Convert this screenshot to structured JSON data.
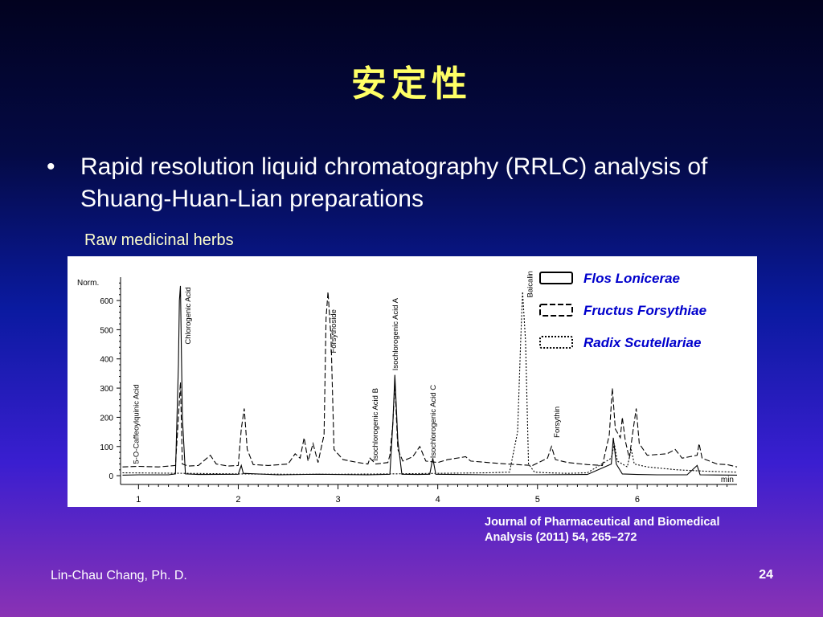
{
  "slide": {
    "title": "安定性",
    "bullet": "Rapid resolution liquid chromatography (RRLC) analysis of Shuang-Huan-Lian preparations",
    "subtitle": "Raw medicinal herbs",
    "citation_line1": "Journal of Pharmaceutical and Biomedical",
    "citation_line2": "Analysis (2011) 54, 265–272",
    "author": "Lin-Chau Chang, Ph. D.",
    "page_number": "24"
  },
  "chart_data": {
    "type": "line",
    "ylabel": "Norm.",
    "xlabel": "min",
    "xlim": [
      0.82,
      7.0
    ],
    "ylim": [
      -30,
      680
    ],
    "x_ticks": [
      1,
      2,
      3,
      4,
      5,
      6
    ],
    "y_ticks": [
      0,
      100,
      200,
      300,
      400,
      500,
      600
    ],
    "legend_position": "top-right",
    "series": [
      {
        "name": "Flos Lonicerae",
        "style": "solid",
        "points": [
          [
            0.84,
            2
          ],
          [
            1.0,
            3
          ],
          [
            1.3,
            3
          ],
          [
            1.37,
            6
          ],
          [
            1.4,
            380
          ],
          [
            1.41,
            600
          ],
          [
            1.42,
            650
          ],
          [
            1.44,
            200
          ],
          [
            1.47,
            6
          ],
          [
            1.6,
            4
          ],
          [
            2.0,
            5
          ],
          [
            2.03,
            35
          ],
          [
            2.05,
            8
          ],
          [
            2.4,
            3
          ],
          [
            2.8,
            5
          ],
          [
            3.3,
            3
          ],
          [
            3.52,
            5
          ],
          [
            3.55,
            180
          ],
          [
            3.57,
            345
          ],
          [
            3.6,
            120
          ],
          [
            3.64,
            5
          ],
          [
            3.8,
            4
          ],
          [
            3.92,
            5
          ],
          [
            3.95,
            60
          ],
          [
            3.98,
            5
          ],
          [
            4.5,
            3
          ],
          [
            5.0,
            3
          ],
          [
            5.5,
            4
          ],
          [
            5.74,
            40
          ],
          [
            5.76,
            130
          ],
          [
            5.79,
            40
          ],
          [
            5.85,
            6
          ],
          [
            6.0,
            4
          ],
          [
            6.2,
            3
          ],
          [
            6.5,
            3
          ],
          [
            6.6,
            35
          ],
          [
            6.63,
            3
          ],
          [
            7.0,
            2
          ]
        ]
      },
      {
        "name": "Fructus Forsythiae",
        "style": "dashed",
        "points": [
          [
            0.84,
            30
          ],
          [
            1.0,
            32
          ],
          [
            1.2,
            30
          ],
          [
            1.37,
            35
          ],
          [
            1.4,
            200
          ],
          [
            1.42,
            320
          ],
          [
            1.44,
            40
          ],
          [
            1.5,
            33
          ],
          [
            1.6,
            35
          ],
          [
            1.72,
            70
          ],
          [
            1.78,
            40
          ],
          [
            1.9,
            33
          ],
          [
            2.0,
            35
          ],
          [
            2.03,
            160
          ],
          [
            2.06,
            230
          ],
          [
            2.09,
            90
          ],
          [
            2.15,
            38
          ],
          [
            2.3,
            35
          ],
          [
            2.5,
            40
          ],
          [
            2.57,
            75
          ],
          [
            2.62,
            60
          ],
          [
            2.66,
            130
          ],
          [
            2.7,
            50
          ],
          [
            2.75,
            110
          ],
          [
            2.8,
            45
          ],
          [
            2.86,
            140
          ],
          [
            2.88,
            540
          ],
          [
            2.9,
            630
          ],
          [
            2.93,
            470
          ],
          [
            2.96,
            90
          ],
          [
            3.05,
            55
          ],
          [
            3.2,
            45
          ],
          [
            3.3,
            40
          ],
          [
            3.32,
            60
          ],
          [
            3.38,
            40
          ],
          [
            3.5,
            45
          ],
          [
            3.52,
            70
          ],
          [
            3.55,
            180
          ],
          [
            3.57,
            320
          ],
          [
            3.6,
            90
          ],
          [
            3.65,
            50
          ],
          [
            3.75,
            65
          ],
          [
            3.82,
            100
          ],
          [
            3.88,
            50
          ],
          [
            4.0,
            45
          ],
          [
            4.1,
            55
          ],
          [
            4.28,
            65
          ],
          [
            4.33,
            50
          ],
          [
            4.5,
            45
          ],
          [
            4.7,
            40
          ],
          [
            4.95,
            35
          ],
          [
            5.1,
            60
          ],
          [
            5.14,
            100
          ],
          [
            5.18,
            55
          ],
          [
            5.3,
            45
          ],
          [
            5.5,
            38
          ],
          [
            5.65,
            35
          ],
          [
            5.72,
            140
          ],
          [
            5.75,
            300
          ],
          [
            5.78,
            160
          ],
          [
            5.83,
            130
          ],
          [
            5.85,
            200
          ],
          [
            5.88,
            120
          ],
          [
            5.92,
            60
          ],
          [
            5.96,
            160
          ],
          [
            5.99,
            230
          ],
          [
            6.02,
            110
          ],
          [
            6.1,
            70
          ],
          [
            6.3,
            75
          ],
          [
            6.38,
            90
          ],
          [
            6.45,
            60
          ],
          [
            6.6,
            70
          ],
          [
            6.62,
            110
          ],
          [
            6.65,
            60
          ],
          [
            6.8,
            40
          ],
          [
            6.9,
            38
          ],
          [
            7.0,
            30
          ]
        ]
      },
      {
        "name": "Radix Scutellariae",
        "style": "dotted",
        "points": [
          [
            0.84,
            10
          ],
          [
            1.5,
            8
          ],
          [
            2.0,
            6
          ],
          [
            2.5,
            5
          ],
          [
            3.0,
            5
          ],
          [
            3.5,
            6
          ],
          [
            4.0,
            8
          ],
          [
            4.5,
            10
          ],
          [
            4.72,
            12
          ],
          [
            4.8,
            150
          ],
          [
            4.83,
            450
          ],
          [
            4.85,
            630
          ],
          [
            4.88,
            460
          ],
          [
            4.91,
            40
          ],
          [
            4.97,
            12
          ],
          [
            5.1,
            10
          ],
          [
            5.3,
            8
          ],
          [
            5.5,
            10
          ],
          [
            5.74,
            60
          ],
          [
            5.77,
            110
          ],
          [
            5.8,
            50
          ],
          [
            5.9,
            30
          ],
          [
            5.94,
            90
          ],
          [
            5.97,
            40
          ],
          [
            6.1,
            30
          ],
          [
            6.4,
            20
          ],
          [
            6.7,
            15
          ],
          [
            7.0,
            12
          ]
        ]
      }
    ],
    "peak_labels": [
      {
        "text": "5-O-Caffeoylquinic Acid",
        "x": 1.0,
        "y": 40
      },
      {
        "text": "Chlorogenic Acid",
        "x": 1.52,
        "y": 450
      },
      {
        "text": "Forsythoside",
        "x": 2.98,
        "y": 420
      },
      {
        "text": "Isochlorogenic Acid B",
        "x": 3.4,
        "y": 50
      },
      {
        "text": "Isochlorogenic Acid A",
        "x": 3.6,
        "y": 360
      },
      {
        "text": "Isochlorogenic Acid C",
        "x": 3.98,
        "y": 60
      },
      {
        "text": "Baicalin",
        "x": 4.95,
        "y": 610
      },
      {
        "text": "Forsythin",
        "x": 5.22,
        "y": 130
      }
    ]
  }
}
